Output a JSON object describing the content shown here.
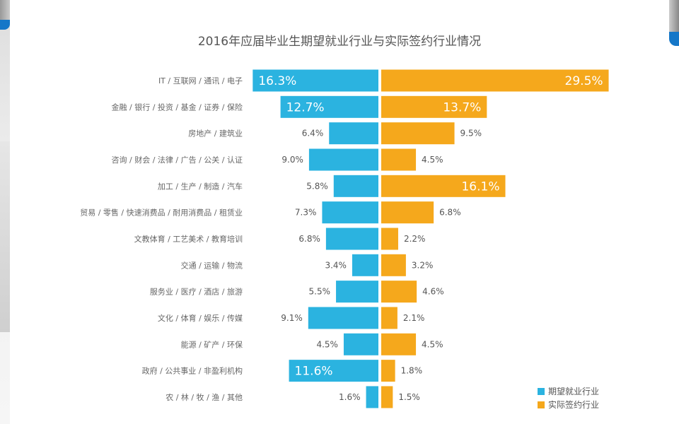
{
  "chart_data": {
    "type": "bar",
    "orientation": "horizontal-diverging",
    "title": "2016年应届毕业生期望就业行业与实际签约行业情况",
    "categories": [
      "IT / 互联网 / 通讯 / 电子",
      "金融 / 银行 / 投资 / 基金 / 证券 / 保险",
      "房地产 / 建筑业",
      "咨询 / 财会 / 法律 / 广告 / 公关 / 认证",
      "加工 / 生产 / 制造 / 汽车",
      "贸易 / 零售 / 快速消费品 / 耐用消费品 / 租赁业",
      "文教体育 / 工艺美术 / 教育培训",
      "交通 / 运输 / 物流",
      "服务业 / 医疗 / 酒店 / 旅游",
      "文化 / 体育 / 娱乐 / 传媒",
      "能源 / 矿产 / 环保",
      "政府 / 公共事业 / 非盈利机构",
      "农 / 林 / 牧 / 渔 / 其他"
    ],
    "series": [
      {
        "name": "期望就业行业",
        "color": "#2bb3e0",
        "values": [
          16.3,
          12.7,
          6.4,
          9.0,
          5.8,
          7.3,
          6.8,
          3.4,
          5.5,
          9.1,
          4.5,
          11.6,
          1.6
        ]
      },
      {
        "name": "实际签约行业",
        "color": "#f5a81c",
        "values": [
          29.5,
          13.7,
          9.5,
          4.5,
          16.1,
          6.8,
          2.2,
          3.2,
          4.6,
          2.1,
          4.5,
          1.8,
          1.5
        ]
      }
    ],
    "value_format": "%",
    "legend": "bottom-right",
    "grid": false
  }
}
